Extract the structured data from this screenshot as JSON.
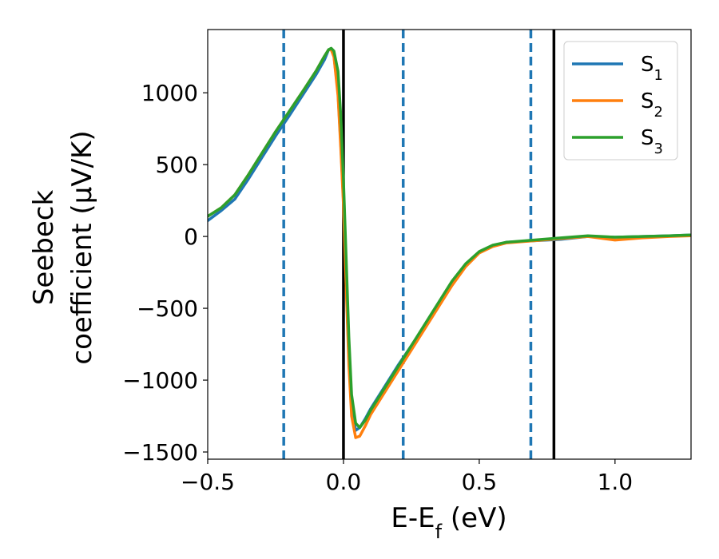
{
  "chart_data": {
    "type": "line",
    "xlabel_main": "E-E",
    "xlabel_sub": "f",
    "xlabel_unit": " (eV)",
    "ylabel_line1": "Seebeck",
    "ylabel_line2": "coefficient  (μV/K)",
    "xlim": [
      -0.5,
      1.28
    ],
    "ylim": [
      -1550,
      1440
    ],
    "xticks": [
      -0.5,
      0.0,
      0.5,
      1.0
    ],
    "xtick_labels": [
      "−0.5",
      "0.0",
      "0.5",
      "1.0"
    ],
    "yticks": [
      -1500,
      -1000,
      -500,
      0,
      500,
      1000
    ],
    "ytick_labels": [
      "−1500",
      "−1000",
      "−500",
      "0",
      "500",
      "1000"
    ],
    "grid": false,
    "legend_position": "top-right",
    "vlines_solid": [
      0.0,
      0.775
    ],
    "vlines_dashed": [
      -0.22,
      0.22,
      0.69
    ],
    "series": [
      {
        "name": "S",
        "sub": "1",
        "color": "#1f77b4",
        "x": [
          -0.5,
          -0.45,
          -0.4,
          -0.35,
          -0.3,
          -0.25,
          -0.2,
          -0.15,
          -0.1,
          -0.07,
          -0.055,
          -0.045,
          -0.035,
          -0.02,
          -0.01,
          0.0,
          0.01,
          0.02,
          0.03,
          0.045,
          0.06,
          0.08,
          0.1,
          0.15,
          0.2,
          0.25,
          0.3,
          0.35,
          0.4,
          0.45,
          0.5,
          0.55,
          0.6,
          0.7,
          0.8,
          0.9,
          1.0,
          1.1,
          1.2,
          1.28
        ],
        "y": [
          110,
          180,
          260,
          400,
          550,
          700,
          840,
          985,
          1130,
          1230,
          1300,
          1300,
          1260,
          1000,
          650,
          250,
          -300,
          -850,
          -1200,
          -1350,
          -1330,
          -1270,
          -1200,
          -1050,
          -900,
          -760,
          -620,
          -480,
          -330,
          -200,
          -110,
          -65,
          -40,
          -30,
          -20,
          0,
          -5,
          0,
          5,
          10
        ]
      },
      {
        "name": "S",
        "sub": "2",
        "color": "#ff7f0e",
        "x": [
          -0.5,
          -0.45,
          -0.4,
          -0.35,
          -0.3,
          -0.25,
          -0.2,
          -0.15,
          -0.1,
          -0.07,
          -0.055,
          -0.045,
          -0.035,
          -0.02,
          -0.01,
          0.0,
          0.01,
          0.02,
          0.03,
          0.045,
          0.06,
          0.08,
          0.1,
          0.15,
          0.2,
          0.25,
          0.3,
          0.35,
          0.4,
          0.45,
          0.5,
          0.55,
          0.6,
          0.7,
          0.8,
          0.9,
          1.0,
          1.1,
          1.2,
          1.28
        ],
        "y": [
          140,
          200,
          290,
          430,
          580,
          730,
          870,
          1010,
          1155,
          1255,
          1300,
          1300,
          1250,
          980,
          620,
          220,
          -350,
          -900,
          -1250,
          -1400,
          -1390,
          -1320,
          -1240,
          -1090,
          -940,
          -790,
          -640,
          -490,
          -340,
          -210,
          -115,
          -70,
          -45,
          -30,
          -15,
          0,
          -25,
          -10,
          0,
          5
        ]
      },
      {
        "name": "S",
        "sub": "3",
        "color": "#2ca02c",
        "x": [
          -0.5,
          -0.45,
          -0.4,
          -0.35,
          -0.3,
          -0.25,
          -0.2,
          -0.15,
          -0.1,
          -0.07,
          -0.055,
          -0.045,
          -0.035,
          -0.02,
          -0.01,
          0.0,
          0.01,
          0.02,
          0.03,
          0.045,
          0.06,
          0.08,
          0.1,
          0.15,
          0.2,
          0.25,
          0.3,
          0.35,
          0.4,
          0.45,
          0.5,
          0.55,
          0.6,
          0.7,
          0.8,
          0.9,
          1.0,
          1.1,
          1.2,
          1.28
        ],
        "y": [
          140,
          200,
          290,
          430,
          580,
          730,
          870,
          1010,
          1155,
          1255,
          1300,
          1310,
          1290,
          1150,
          850,
          400,
          -150,
          -700,
          -1100,
          -1300,
          -1330,
          -1280,
          -1210,
          -1060,
          -910,
          -760,
          -610,
          -460,
          -310,
          -190,
          -105,
          -60,
          -40,
          -25,
          -10,
          5,
          -5,
          0,
          5,
          10
        ]
      }
    ]
  }
}
